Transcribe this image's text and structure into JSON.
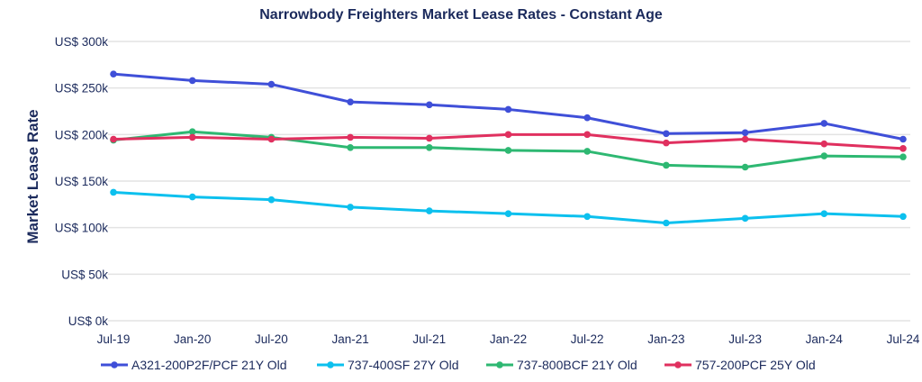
{
  "chart_data": {
    "type": "line",
    "title": "Narrowbody Freighters Market Lease Rates - Constant Age",
    "xlabel": "",
    "ylabel": "Market Lease Rate",
    "categories": [
      "Jul-19",
      "Jan-20",
      "Jul-20",
      "Jan-21",
      "Jul-21",
      "Jan-22",
      "Jul-22",
      "Jan-23",
      "Jul-23",
      "Jan-24",
      "Jul-24"
    ],
    "yticks": [
      0,
      50,
      100,
      150,
      200,
      250,
      300
    ],
    "ytick_labels": [
      "US$ 0k",
      "US$ 50k",
      "US$ 100k",
      "US$ 150k",
      "US$ 200k",
      "US$ 250k",
      "US$ 300k"
    ],
    "ylim": [
      0,
      300
    ],
    "grid": true,
    "legend_position": "bottom",
    "series": [
      {
        "name": "A321-200P2F/PCF 21Y Old",
        "color": "#3f4fd8",
        "values": [
          265,
          258,
          254,
          235,
          232,
          227,
          218,
          201,
          202,
          212,
          195
        ]
      },
      {
        "name": "737-400SF 27Y Old",
        "color": "#0cc0ee",
        "values": [
          138,
          133,
          130,
          122,
          118,
          115,
          112,
          105,
          110,
          115,
          112
        ]
      },
      {
        "name": "737-800BCF 21Y Old",
        "color": "#2eb872",
        "values": [
          194,
          203,
          197,
          186,
          186,
          183,
          182,
          167,
          165,
          177,
          176
        ]
      },
      {
        "name": "757-200PCF 25Y Old",
        "color": "#e0305f",
        "values": [
          195,
          197,
          195,
          197,
          196,
          200,
          200,
          191,
          195,
          190,
          185
        ]
      }
    ]
  }
}
